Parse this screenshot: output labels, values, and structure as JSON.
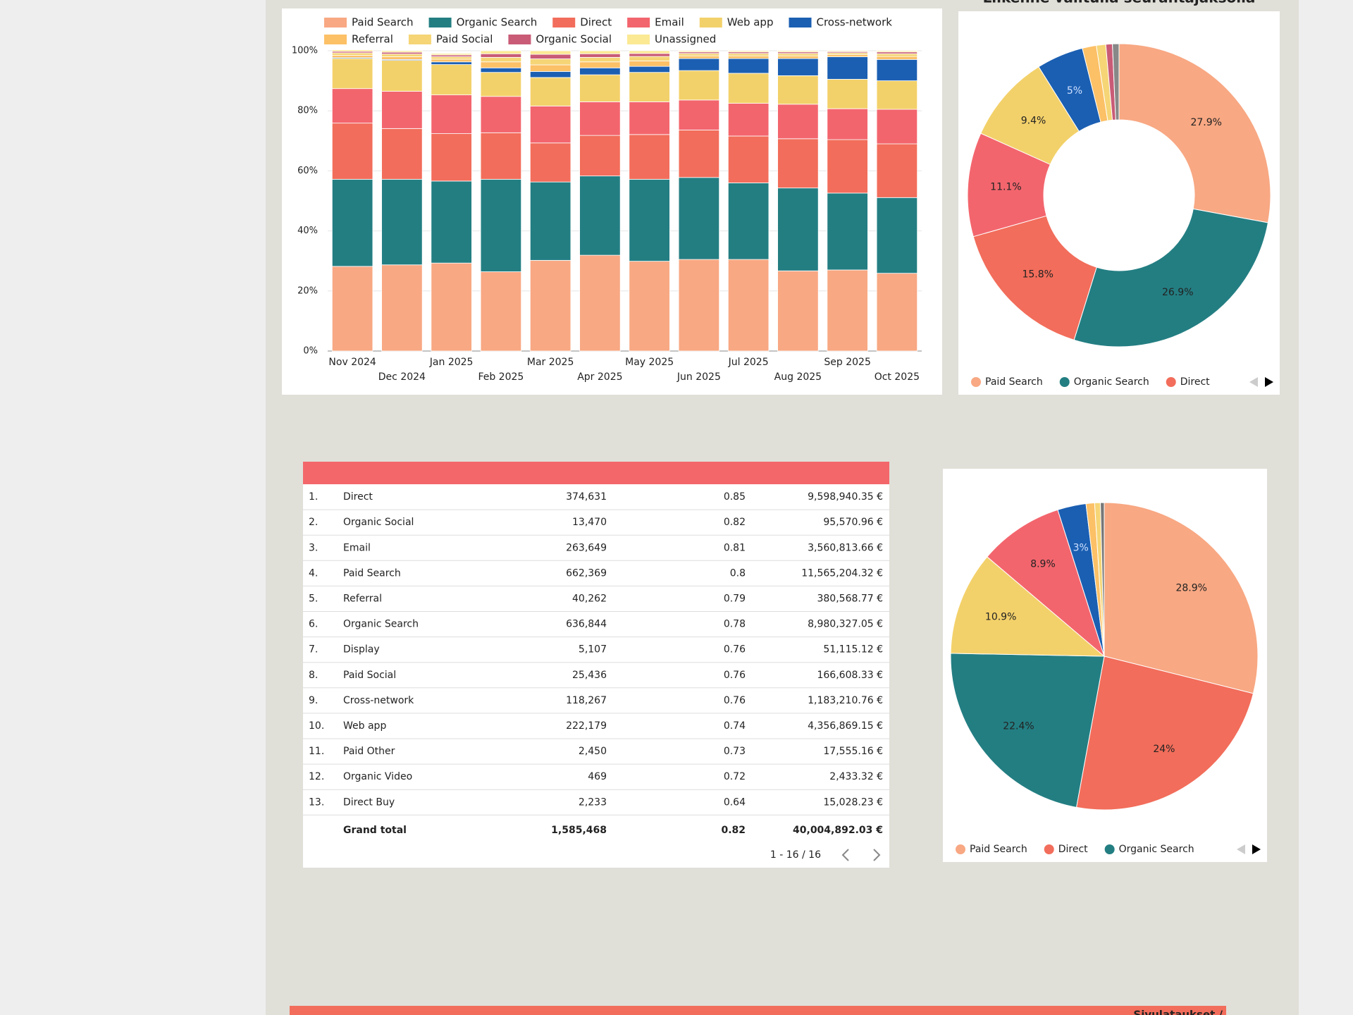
{
  "chart_data": [
    {
      "type": "stacked_bar",
      "categories": [
        "Nov 2024",
        "Dec 2024",
        "Jan 2025",
        "Feb 2025",
        "Mar 2025",
        "Apr 2025",
        "May 2025",
        "Jun 2025",
        "Jul 2025",
        "Aug 2025",
        "Sep 2025",
        "Oct 2025"
      ],
      "series": [
        {
          "name": "Paid Search",
          "color": "#f8a883",
          "values": [
            28.2,
            28.7,
            29.3,
            26.4,
            30.2,
            31.9,
            29.9,
            30.5,
            30.5,
            26.7,
            27.0,
            25.9
          ]
        },
        {
          "name": "Organic Search",
          "color": "#237e82",
          "values": [
            29.0,
            28.5,
            27.3,
            30.8,
            26.1,
            26.4,
            27.3,
            27.3,
            25.5,
            27.6,
            25.6,
            25.2
          ]
        },
        {
          "name": "Direct",
          "color": "#f26d5b",
          "values": [
            18.7,
            16.9,
            15.8,
            15.5,
            13.0,
            13.5,
            14.9,
            15.8,
            15.6,
            16.4,
            17.8,
            17.9
          ]
        },
        {
          "name": "Email",
          "color": "#f3656d",
          "values": [
            11.5,
            12.4,
            12.9,
            12.1,
            12.3,
            11.2,
            10.9,
            10.0,
            10.9,
            11.5,
            10.3,
            11.5
          ]
        },
        {
          "name": "Web app",
          "color": "#f3d16a",
          "values": [
            10.0,
            10.3,
            10.1,
            8.0,
            9.5,
            9.0,
            9.8,
            9.8,
            10.0,
            9.5,
            9.8,
            9.5
          ]
        },
        {
          "name": "Cross-network",
          "color": "#1b5fb2",
          "values": [
            0.3,
            0.3,
            0.9,
            1.5,
            2.0,
            2.3,
            2.0,
            4.0,
            4.9,
            5.7,
            7.5,
            7.1
          ]
        },
        {
          "name": "Referral",
          "color": "#fcc066",
          "values": [
            0.8,
            0.9,
            0.9,
            2.0,
            2.2,
            2.0,
            1.8,
            0.9,
            0.9,
            0.9,
            0.7,
            1.0
          ]
        },
        {
          "name": "Paid Social",
          "color": "#f5d576",
          "values": [
            0.8,
            0.9,
            0.8,
            1.5,
            2.0,
            1.5,
            1.5,
            0.8,
            0.8,
            0.8,
            0.6,
            0.9
          ]
        },
        {
          "name": "Organic Social",
          "color": "#c95b76",
          "values": [
            0.5,
            0.6,
            0.6,
            1.2,
            1.5,
            1.2,
            1.0,
            0.5,
            0.5,
            0.5,
            0.4,
            0.6
          ]
        },
        {
          "name": "Unassigned",
          "color": "#fbe994",
          "values": [
            0.5,
            0.5,
            0.5,
            1.0,
            1.2,
            1.0,
            0.9,
            0.4,
            0.4,
            0.4,
            0.3,
            0.4
          ]
        }
      ],
      "ylim": [
        0,
        100
      ],
      "yticks": [
        {
          "value": 0,
          "label": "0%"
        },
        {
          "value": 20,
          "label": "20%"
        },
        {
          "value": 40,
          "label": "40%"
        },
        {
          "value": 60,
          "label": "60%"
        },
        {
          "value": 80,
          "label": "80%"
        },
        {
          "value": 100,
          "label": "100%"
        }
      ],
      "grid": true
    },
    {
      "type": "donut",
      "title": "Liikenne valitulla seurantajaksolla",
      "categories": [
        "Paid Search",
        "Organic Search",
        "Direct",
        "Email",
        "Web app",
        "Cross-network",
        "Referral",
        "Paid Social",
        "Organic Social",
        "Unassigned"
      ],
      "values": [
        27.9,
        26.9,
        15.8,
        11.1,
        9.4,
        5,
        1.5,
        1.0,
        0.7,
        0.7
      ],
      "value_labels": [
        "27.9%",
        "26.9%",
        "15.8%",
        "11.1%",
        "9.4%",
        "5%",
        null,
        null,
        null,
        null
      ],
      "colors": [
        "#f8a883",
        "#237e82",
        "#f26d5b",
        "#f3656d",
        "#f3d16a",
        "#1b5fb2",
        "#fcc066",
        "#f5d576",
        "#c95b76",
        "#888888"
      ]
    },
    {
      "type": "pie",
      "categories": [
        "Paid Search",
        "Direct",
        "Organic Search",
        "Web app",
        "Email",
        "Cross-network",
        "Referral",
        "Paid Social",
        "Organic Social"
      ],
      "values": [
        28.9,
        24,
        22.4,
        10.9,
        8.9,
        3,
        0.9,
        0.6,
        0.4
      ],
      "value_labels": [
        "28.9%",
        "24%",
        "22.4%",
        "10.9%",
        "8.9%",
        "3%",
        null,
        null,
        null
      ],
      "colors": [
        "#f8a883",
        "#f26d5b",
        "#237e82",
        "#f3d16a",
        "#f3656d",
        "#1b5fb2",
        "#fcc066",
        "#f5d576",
        "#777777"
      ]
    }
  ],
  "table": {
    "rows": [
      [
        "1.",
        "Direct",
        "374,631",
        "0.85",
        "9,598,940.35 €"
      ],
      [
        "2.",
        "Organic Social",
        "13,470",
        "0.82",
        "95,570.96 €"
      ],
      [
        "3.",
        "Email",
        "263,649",
        "0.81",
        "3,560,813.66 €"
      ],
      [
        "4.",
        "Paid Search",
        "662,369",
        "0.8",
        "11,565,204.32 €"
      ],
      [
        "5.",
        "Referral",
        "40,262",
        "0.79",
        "380,568.77 €"
      ],
      [
        "6.",
        "Organic Search",
        "636,844",
        "0.78",
        "8,980,327.05 €"
      ],
      [
        "7.",
        "Display",
        "5,107",
        "0.76",
        "51,115.12 €"
      ],
      [
        "8.",
        "Paid Social",
        "25,436",
        "0.76",
        "166,608.33 €"
      ],
      [
        "9.",
        "Cross-network",
        "118,267",
        "0.76",
        "1,183,210.76 €"
      ],
      [
        "10.",
        "Web app",
        "222,179",
        "0.74",
        "4,356,869.15 €"
      ],
      [
        "11.",
        "Paid Other",
        "2,450",
        "0.73",
        "17,555.16 €"
      ],
      [
        "12.",
        "Organic Video",
        "469",
        "0.72",
        "2,433.32 €"
      ],
      [
        "13.",
        "Direct Buy",
        "2,233",
        "0.64",
        "15,028.23 €"
      ]
    ],
    "total": [
      "Grand total",
      "1,585,468",
      "0.82",
      "40,004,892.03 €"
    ],
    "pagination": "1 - 16 / 16"
  },
  "footer": {
    "title": "Sivulataukset /"
  }
}
